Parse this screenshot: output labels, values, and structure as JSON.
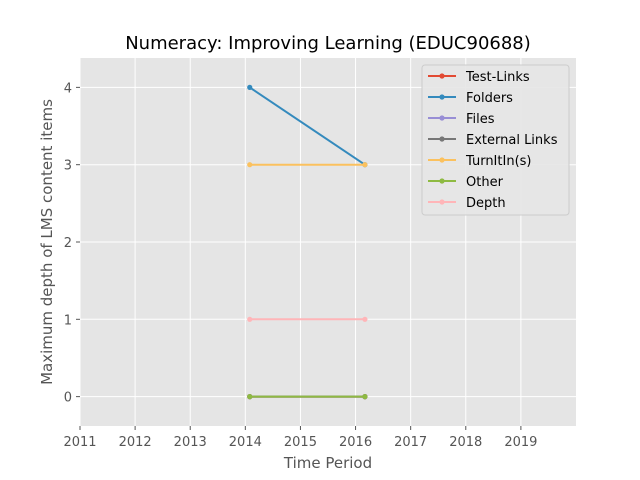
{
  "chart_data": {
    "type": "line",
    "title": "Numeracy: Improving Learning (EDUC90688)",
    "xlabel": "Time Period",
    "ylabel": "Maximum depth of LMS content items",
    "xlim": [
      2011,
      2020
    ],
    "ylim": [
      -0.38,
      4.38
    ],
    "xticks": [
      2011,
      2012,
      2013,
      2014,
      2015,
      2016,
      2017,
      2018,
      2019
    ],
    "yticks": [
      0,
      1,
      2,
      3,
      4
    ],
    "grid": true,
    "legend_position": "top-right",
    "series": [
      {
        "name": "Test-Links",
        "color": "#E24A33",
        "points": [
          [
            2014.08,
            0
          ],
          [
            2016.17,
            0
          ]
        ]
      },
      {
        "name": "Folders",
        "color": "#348ABD",
        "points": [
          [
            2014.08,
            4
          ],
          [
            2016.17,
            3
          ]
        ]
      },
      {
        "name": "Files",
        "color": "#988ED5",
        "points": [
          [
            2014.08,
            0
          ],
          [
            2016.17,
            0
          ]
        ]
      },
      {
        "name": "External Links",
        "color": "#777777",
        "points": [
          [
            2014.08,
            0
          ],
          [
            2016.17,
            0
          ]
        ]
      },
      {
        "name": "TurnItIn(s)",
        "color": "#FBC15E",
        "points": [
          [
            2014.08,
            3
          ],
          [
            2016.17,
            3
          ]
        ]
      },
      {
        "name": "Other",
        "color": "#8EBA42",
        "points": [
          [
            2014.08,
            0
          ],
          [
            2016.17,
            0
          ]
        ]
      },
      {
        "name": "Depth",
        "color": "#FFB5B8",
        "points": [
          [
            2014.08,
            1
          ],
          [
            2016.17,
            1
          ]
        ]
      }
    ]
  }
}
